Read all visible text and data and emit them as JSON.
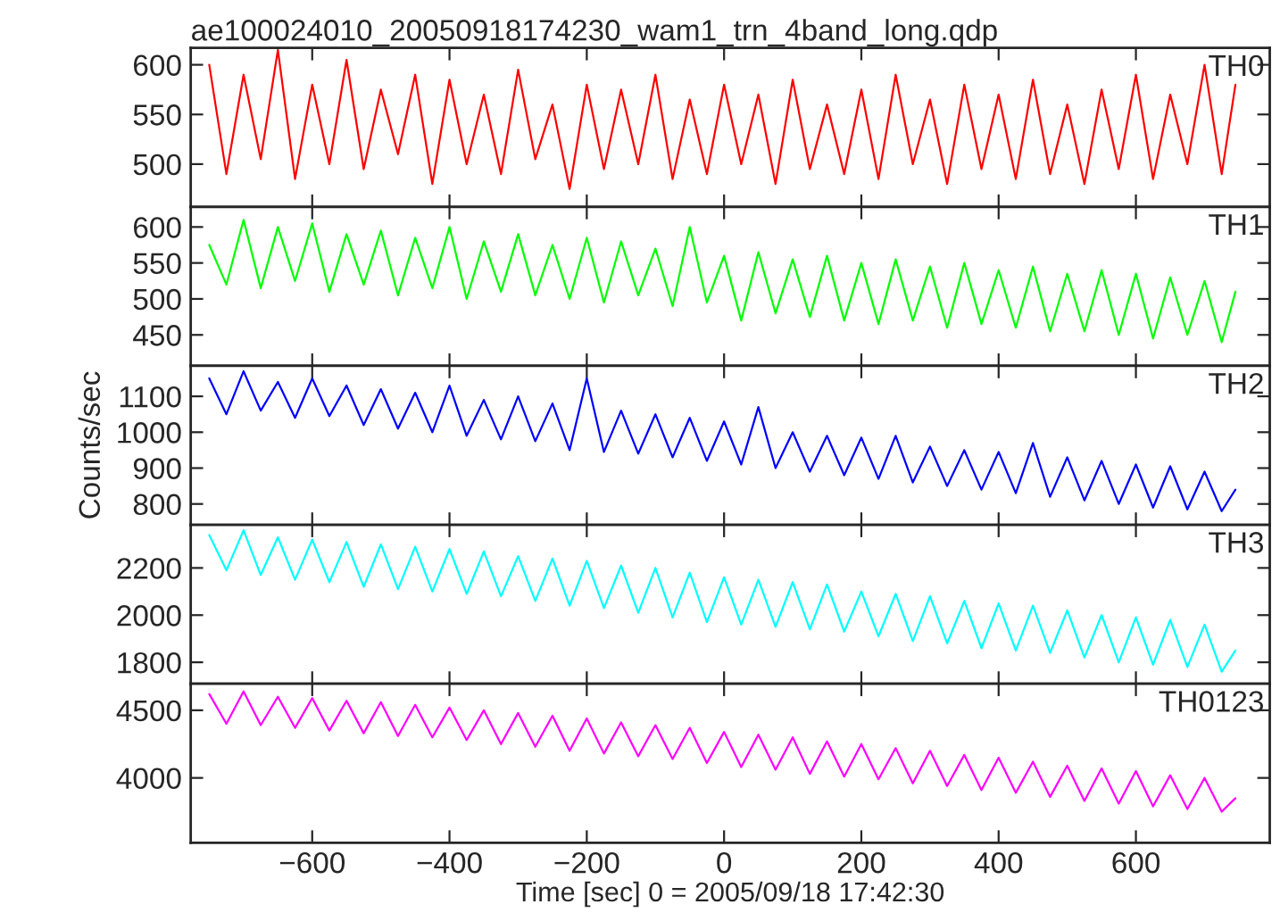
{
  "chart_data": [
    {
      "type": "line",
      "title": "ae100024010_20050918174230_wam1_trn_4band_long.qdp",
      "annotations": [
        "TH0"
      ],
      "tick_labels": "y",
      "grid": false,
      "xlim": [
        -777,
        795
      ],
      "xticks": [
        -600,
        -400,
        -200,
        0,
        200,
        400,
        600
      ],
      "ylim": [
        457,
        617
      ],
      "yticks": [
        500,
        550,
        600
      ],
      "x": [
        -750,
        -725,
        -700,
        -675,
        -650,
        -625,
        -600,
        -575,
        -550,
        -525,
        -500,
        -475,
        -450,
        -425,
        -400,
        -375,
        -350,
        -325,
        -300,
        -275,
        -250,
        -225,
        -200,
        -175,
        -150,
        -125,
        -100,
        -75,
        -50,
        -25,
        0,
        25,
        50,
        75,
        100,
        125,
        150,
        175,
        200,
        225,
        250,
        275,
        300,
        325,
        350,
        375,
        400,
        425,
        450,
        475,
        500,
        525,
        550,
        575,
        600,
        625,
        650,
        675,
        700,
        725,
        745
      ],
      "series": [
        {
          "color": "#ff0000",
          "values": [
            600,
            490,
            590,
            505,
            615,
            485,
            580,
            500,
            605,
            495,
            575,
            510,
            590,
            480,
            585,
            500,
            570,
            490,
            595,
            505,
            560,
            475,
            580,
            495,
            575,
            500,
            590,
            485,
            565,
            490,
            580,
            500,
            570,
            480,
            585,
            495,
            560,
            490,
            575,
            485,
            590,
            500,
            565,
            480,
            580,
            495,
            570,
            485,
            585,
            490,
            560,
            480,
            575,
            495,
            590,
            485,
            570,
            500,
            600,
            490,
            580
          ]
        }
      ]
    },
    {
      "type": "line",
      "annotations": [
        "TH1"
      ],
      "tick_labels": "y",
      "grid": false,
      "xlim": [
        -777,
        795
      ],
      "xticks": [
        -600,
        -400,
        -200,
        0,
        200,
        400,
        600
      ],
      "ylim": [
        407,
        628
      ],
      "yticks": [
        450,
        500,
        550,
        600
      ],
      "x": [
        -750,
        -725,
        -700,
        -675,
        -650,
        -625,
        -600,
        -575,
        -550,
        -525,
        -500,
        -475,
        -450,
        -425,
        -400,
        -375,
        -350,
        -325,
        -300,
        -275,
        -250,
        -225,
        -200,
        -175,
        -150,
        -125,
        -100,
        -75,
        -50,
        -25,
        0,
        25,
        50,
        75,
        100,
        125,
        150,
        175,
        200,
        225,
        250,
        275,
        300,
        325,
        350,
        375,
        400,
        425,
        450,
        475,
        500,
        525,
        550,
        575,
        600,
        625,
        650,
        675,
        700,
        725,
        745
      ],
      "series": [
        {
          "color": "#00ff00",
          "values": [
            575,
            520,
            610,
            515,
            600,
            525,
            605,
            510,
            590,
            520,
            595,
            505,
            585,
            515,
            600,
            500,
            580,
            510,
            590,
            505,
            575,
            500,
            585,
            495,
            580,
            505,
            570,
            490,
            600,
            495,
            560,
            470,
            565,
            480,
            555,
            475,
            560,
            470,
            550,
            465,
            555,
            470,
            545,
            460,
            550,
            465,
            540,
            460,
            545,
            455,
            535,
            455,
            540,
            450,
            535,
            445,
            530,
            450,
            525,
            440,
            510
          ]
        }
      ]
    },
    {
      "type": "line",
      "annotations": [
        "TH2"
      ],
      "ylabel": "Counts/sec",
      "tick_labels": "y",
      "grid": false,
      "xlim": [
        -777,
        795
      ],
      "xticks": [
        -600,
        -400,
        -200,
        0,
        200,
        400,
        600
      ],
      "ylim": [
        742,
        1185
      ],
      "yticks": [
        800,
        900,
        1000,
        1100
      ],
      "x": [
        -750,
        -725,
        -700,
        -675,
        -650,
        -625,
        -600,
        -575,
        -550,
        -525,
        -500,
        -475,
        -450,
        -425,
        -400,
        -375,
        -350,
        -325,
        -300,
        -275,
        -250,
        -225,
        -200,
        -175,
        -150,
        -125,
        -100,
        -75,
        -50,
        -25,
        0,
        25,
        50,
        75,
        100,
        125,
        150,
        175,
        200,
        225,
        250,
        275,
        300,
        325,
        350,
        375,
        400,
        425,
        450,
        475,
        500,
        525,
        550,
        575,
        600,
        625,
        650,
        675,
        700,
        725,
        745
      ],
      "series": [
        {
          "color": "#0000ff",
          "values": [
            1150,
            1050,
            1170,
            1060,
            1140,
            1040,
            1150,
            1045,
            1130,
            1020,
            1120,
            1010,
            1110,
            1000,
            1130,
            990,
            1090,
            980,
            1100,
            975,
            1080,
            950,
            1150,
            945,
            1060,
            940,
            1050,
            930,
            1040,
            920,
            1030,
            910,
            1070,
            900,
            1000,
            890,
            990,
            880,
            985,
            870,
            990,
            860,
            960,
            850,
            950,
            840,
            945,
            830,
            970,
            820,
            930,
            810,
            920,
            800,
            910,
            790,
            905,
            785,
            890,
            780,
            840
          ]
        }
      ]
    },
    {
      "type": "line",
      "annotations": [
        "TH3"
      ],
      "tick_labels": "y",
      "grid": false,
      "xlim": [
        -777,
        795
      ],
      "xticks": [
        -600,
        -400,
        -200,
        0,
        200,
        400,
        600
      ],
      "ylim": [
        1709,
        2383
      ],
      "yticks": [
        1800,
        2000,
        2200
      ],
      "x": [
        -750,
        -725,
        -700,
        -675,
        -650,
        -625,
        -600,
        -575,
        -550,
        -525,
        -500,
        -475,
        -450,
        -425,
        -400,
        -375,
        -350,
        -325,
        -300,
        -275,
        -250,
        -225,
        -200,
        -175,
        -150,
        -125,
        -100,
        -75,
        -50,
        -25,
        0,
        25,
        50,
        75,
        100,
        125,
        150,
        175,
        200,
        225,
        250,
        275,
        300,
        325,
        350,
        375,
        400,
        425,
        450,
        475,
        500,
        525,
        550,
        575,
        600,
        625,
        650,
        675,
        700,
        725,
        745
      ],
      "series": [
        {
          "color": "#00ffff",
          "values": [
            2340,
            2190,
            2360,
            2170,
            2330,
            2150,
            2320,
            2140,
            2310,
            2120,
            2300,
            2110,
            2290,
            2100,
            2280,
            2090,
            2270,
            2080,
            2250,
            2060,
            2240,
            2040,
            2230,
            2030,
            2210,
            2010,
            2200,
            1990,
            2180,
            1970,
            2160,
            1960,
            2150,
            1950,
            2140,
            1940,
            2130,
            1930,
            2100,
            1910,
            2090,
            1890,
            2080,
            1880,
            2060,
            1860,
            2050,
            1850,
            2040,
            1840,
            2020,
            1820,
            2000,
            1800,
            1990,
            1790,
            1980,
            1780,
            1960,
            1760,
            1850
          ]
        }
      ]
    },
    {
      "type": "line",
      "annotations": [
        "TH0123"
      ],
      "xlabel": "Time [sec] 0 = 2005/09/18 17:42:30",
      "grid": false,
      "xlim": [
        -777,
        795
      ],
      "xticks": [
        -600,
        -400,
        -200,
        0,
        200,
        400,
        600
      ],
      "ylim": [
        3521,
        4696
      ],
      "yticks": [
        4000,
        4500
      ],
      "x": [
        -750,
        -725,
        -700,
        -675,
        -650,
        -625,
        -600,
        -575,
        -550,
        -525,
        -500,
        -475,
        -450,
        -425,
        -400,
        -375,
        -350,
        -325,
        -300,
        -275,
        -250,
        -225,
        -200,
        -175,
        -150,
        -125,
        -100,
        -75,
        -50,
        -25,
        0,
        25,
        50,
        75,
        100,
        125,
        150,
        175,
        200,
        225,
        250,
        275,
        300,
        325,
        350,
        375,
        400,
        425,
        450,
        475,
        500,
        525,
        550,
        575,
        600,
        625,
        650,
        675,
        700,
        725,
        745
      ],
      "series": [
        {
          "color": "#ff00ff",
          "values": [
            4620,
            4400,
            4640,
            4390,
            4600,
            4370,
            4590,
            4350,
            4570,
            4330,
            4560,
            4310,
            4540,
            4300,
            4520,
            4280,
            4500,
            4250,
            4480,
            4230,
            4460,
            4200,
            4440,
            4180,
            4410,
            4160,
            4390,
            4140,
            4370,
            4110,
            4340,
            4080,
            4320,
            4060,
            4300,
            4030,
            4270,
            4010,
            4250,
            3990,
            4220,
            3960,
            4200,
            3940,
            4170,
            3910,
            4150,
            3890,
            4120,
            3860,
            4090,
            3830,
            4070,
            3810,
            4050,
            3790,
            4020,
            3770,
            4000,
            3750,
            3850
          ]
        }
      ]
    }
  ]
}
